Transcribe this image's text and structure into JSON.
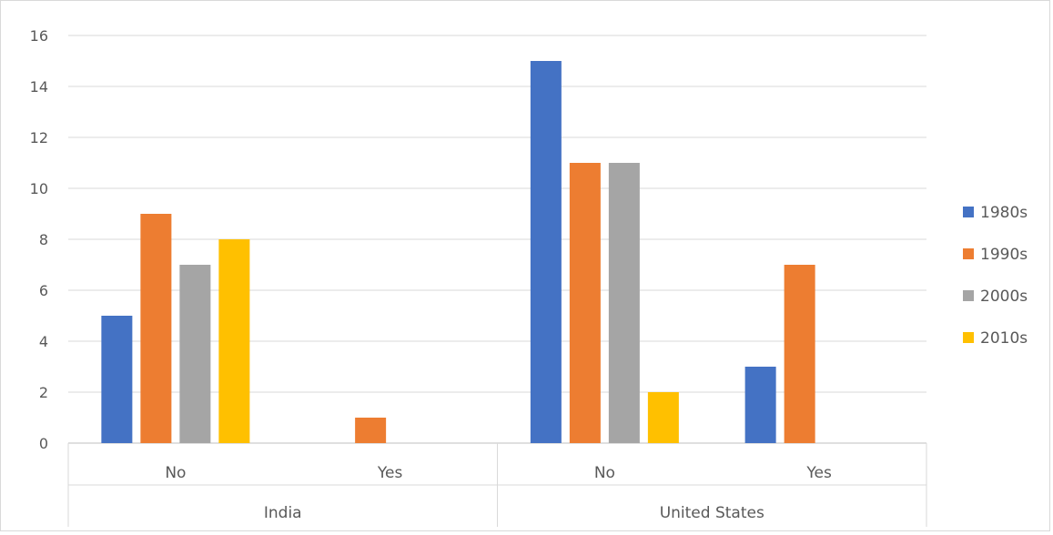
{
  "chart_data": {
    "type": "bar",
    "title": "",
    "xlabel": "",
    "ylabel": "",
    "ylim": [
      0,
      16
    ],
    "yticks": [
      0,
      2,
      4,
      6,
      8,
      10,
      12,
      14,
      16
    ],
    "grid": true,
    "legend_position": "right",
    "groups": [
      {
        "label": "India",
        "categories": [
          "No",
          "Yes"
        ]
      },
      {
        "label": "United States",
        "categories": [
          "No",
          "Yes"
        ]
      }
    ],
    "categories": [
      "India - No",
      "India - Yes",
      "United States - No",
      "United States - Yes"
    ],
    "series": [
      {
        "name": "1980s",
        "color": "#4472C4",
        "values": [
          5,
          null,
          15,
          3
        ]
      },
      {
        "name": "1990s",
        "color": "#ED7D31",
        "values": [
          9,
          1,
          11,
          7
        ]
      },
      {
        "name": "2000s",
        "color": "#A5A5A5",
        "values": [
          7,
          null,
          11,
          null
        ]
      },
      {
        "name": "2010s",
        "color": "#FFC000",
        "values": [
          8,
          null,
          2,
          null
        ]
      }
    ]
  }
}
